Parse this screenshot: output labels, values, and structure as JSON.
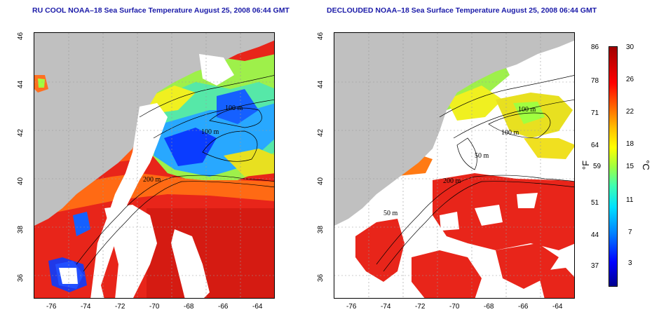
{
  "panels": [
    {
      "title": "RU COOL NOAA–18 Sea Surface Temperature August 25, 2008 06:44 GMT"
    },
    {
      "title": "DECLOUDED NOAA–18 Sea Surface Temperature August 25, 2008 06:44 GMT"
    }
  ],
  "axes": {
    "lat_ticks": [
      "46",
      "44",
      "42",
      "40",
      "38",
      "36"
    ],
    "lon_ticks": [
      "-76",
      "-74",
      "-72",
      "-70",
      "-68",
      "-66",
      "-64"
    ]
  },
  "contours": {
    "labels": [
      "100 m",
      "100 m",
      "200 m",
      "50 m",
      "50 m"
    ]
  },
  "colorbar": {
    "fahrenheit_ticks": [
      "86",
      "78",
      "71",
      "64",
      "59",
      "51",
      "44",
      "37"
    ],
    "celsius_ticks": [
      "30",
      "26",
      "22",
      "18",
      "15",
      "11",
      "7",
      "3"
    ],
    "f_unit": "°F",
    "c_unit": "°C"
  },
  "colors": {
    "land": "#c0c0c0",
    "cloud": "#ffffff",
    "warm": "#e8251a",
    "title": "#1a1aa8"
  }
}
